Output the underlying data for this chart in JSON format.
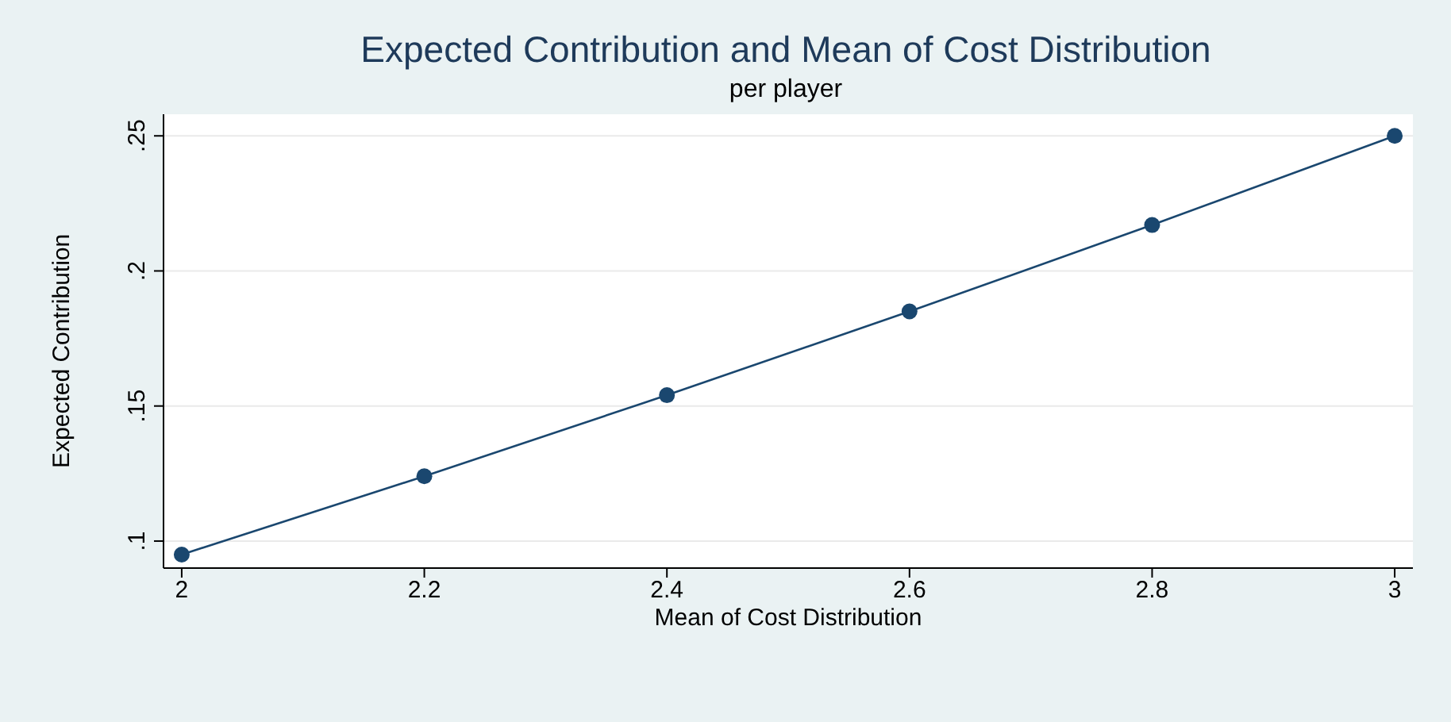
{
  "chart_data": {
    "type": "line",
    "title": "Expected Contribution and Mean of Cost Distribution",
    "subtitle": "per player",
    "xlabel": "Mean of Cost Distribution",
    "ylabel": "Expected Contribution",
    "x": [
      2,
      2.2,
      2.4,
      2.6,
      2.8,
      3
    ],
    "series": [
      {
        "color": "#1a476f",
        "values": [
          0.095,
          0.124,
          0.154,
          0.185,
          0.217,
          0.25
        ]
      }
    ],
    "xlim": [
      1.985,
      3.015
    ],
    "xticks": [
      2,
      2.2,
      2.4,
      2.6,
      2.8,
      3
    ],
    "ylim": [
      0.09,
      0.258
    ],
    "yticks": [
      {
        "value": 0.1,
        "label": ".1"
      },
      {
        "value": 0.15,
        "label": ".15"
      },
      {
        "value": 0.2,
        "label": ".2"
      },
      {
        "value": 0.25,
        "label": ".25"
      }
    ],
    "grid": "y",
    "marker": "circle",
    "line_style": "solid"
  }
}
